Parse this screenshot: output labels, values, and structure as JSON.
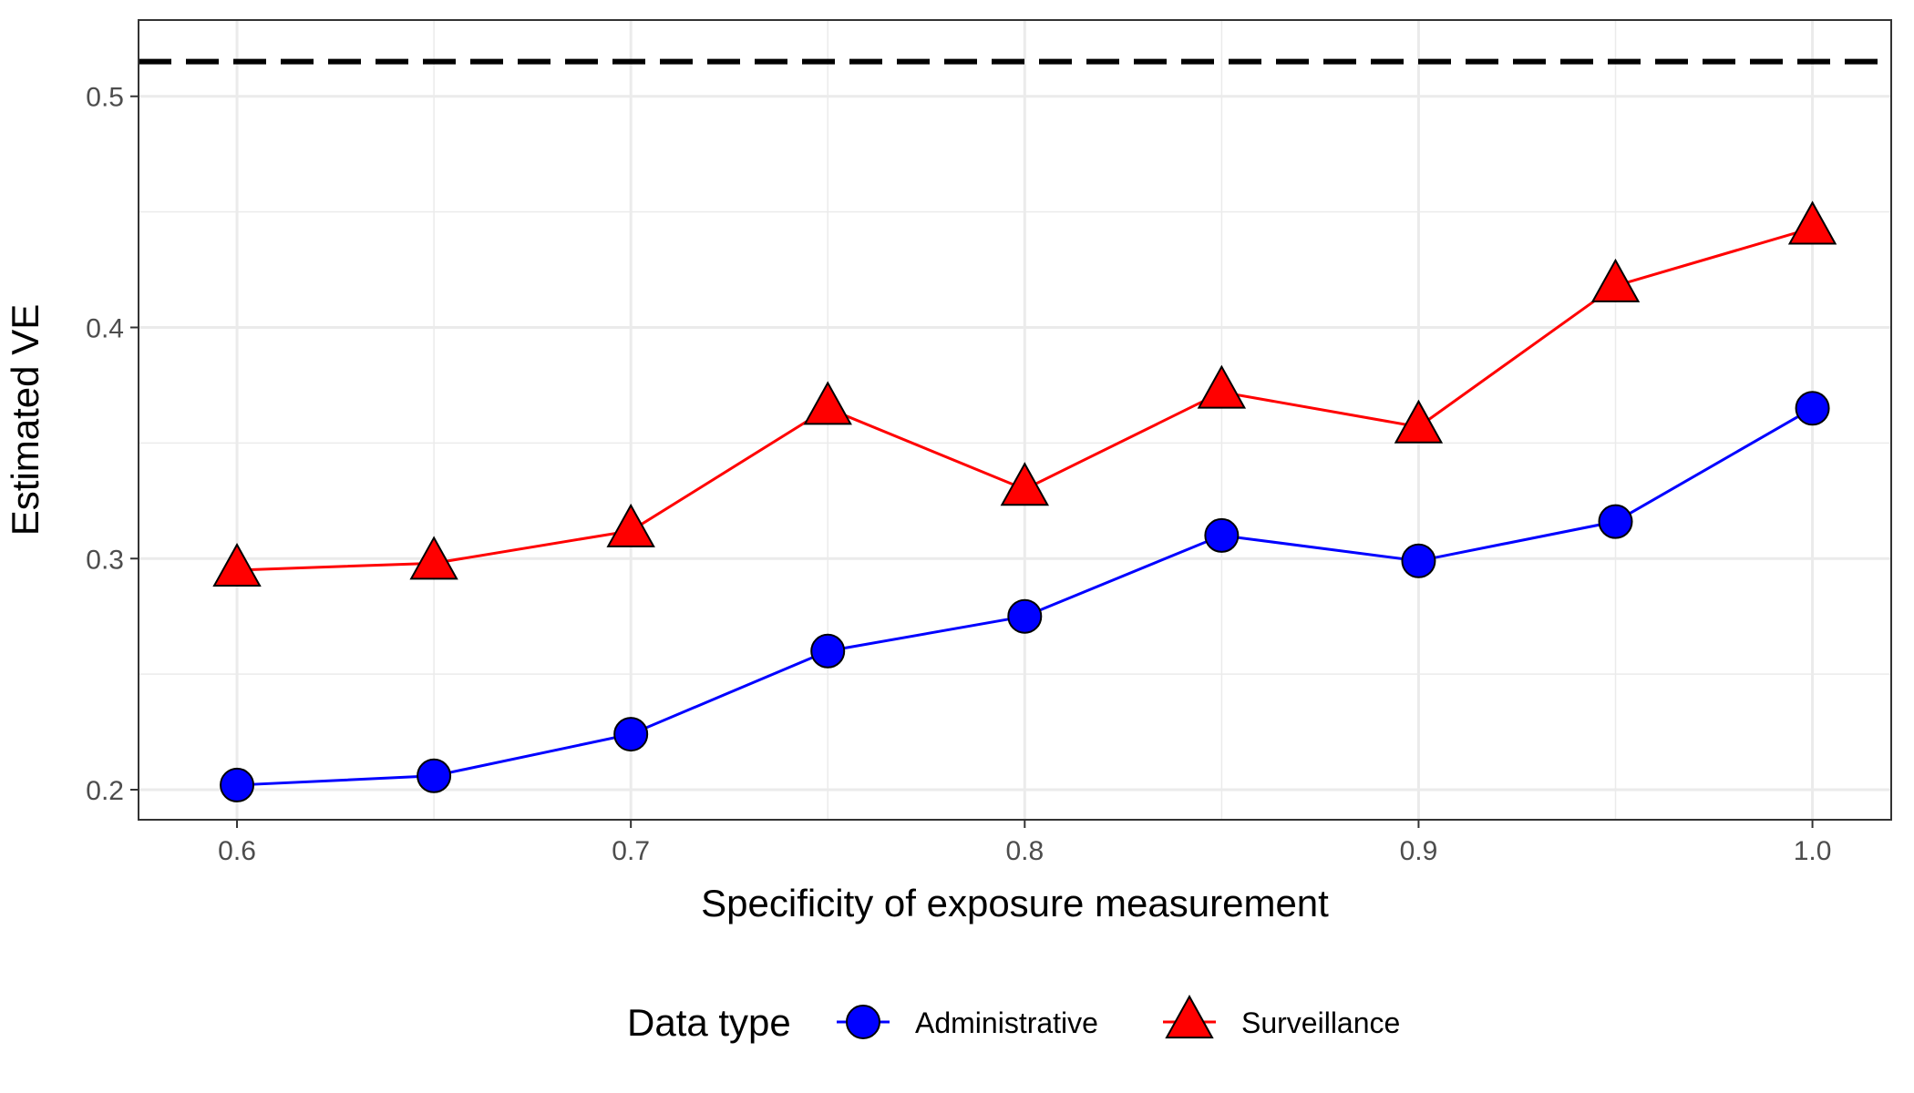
{
  "chart_data": {
    "type": "line",
    "xlabel": "Specificity of exposure measurement",
    "ylabel": "Estimated VE",
    "xlim": [
      0.575,
      1.02
    ],
    "ylim": [
      0.187,
      0.533
    ],
    "x_ticks": [
      0.6,
      0.7,
      0.8,
      0.9,
      1.0
    ],
    "x_tick_labels": [
      "0.6",
      "0.7",
      "0.8",
      "0.9",
      "1.0"
    ],
    "y_ticks": [
      0.2,
      0.3,
      0.4,
      0.5
    ],
    "y_tick_labels": [
      "0.2",
      "0.3",
      "0.4",
      "0.5"
    ],
    "grid": true,
    "reference_line": {
      "y": 0.515,
      "style": "dashed",
      "color": "#000000"
    },
    "x": [
      0.6,
      0.65,
      0.7,
      0.75,
      0.8,
      0.85,
      0.9,
      0.95,
      1.0
    ],
    "series": [
      {
        "name": "Administrative",
        "marker": "circle",
        "color": "#0000ff",
        "values": [
          0.202,
          0.206,
          0.224,
          0.26,
          0.275,
          0.31,
          0.299,
          0.316,
          0.365
        ]
      },
      {
        "name": "Surveillance",
        "marker": "triangle",
        "color": "#ff0000",
        "values": [
          0.295,
          0.298,
          0.312,
          0.365,
          0.33,
          0.372,
          0.357,
          0.418,
          0.443
        ]
      }
    ],
    "legend": {
      "title": "Data type",
      "position": "bottom"
    }
  }
}
